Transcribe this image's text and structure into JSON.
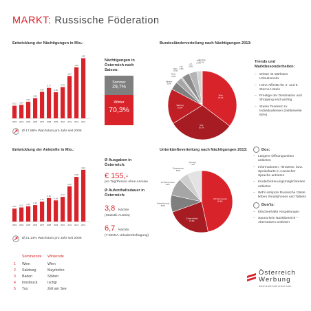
{
  "header": {
    "prefix": "MARKT:",
    "title": "Russische Föderation"
  },
  "chart_data": [
    {
      "type": "bar",
      "title": "Entwicklung der Nächtigungen in Mio.:",
      "categories": [
        "2003",
        "2004",
        "2005",
        "2006",
        "2007",
        "2008",
        "2009",
        "2010",
        "2011",
        "2012",
        "2013"
      ],
      "values": [
        0.32,
        0.34,
        0.42,
        0.51,
        0.67,
        0.77,
        0.66,
        0.79,
        1.07,
        1.29,
        1.52
      ],
      "value_labels": [
        "0,32",
        "0,34",
        "0,42",
        "0,51",
        "0,67",
        "0,77",
        "0,66",
        "0,79",
        "1,07",
        "1,29",
        "1,52"
      ],
      "ylim": [
        0,
        1.6
      ],
      "footnote": "Ø 17,68% Wachstum pro Jahr seit 2005"
    },
    {
      "type": "pie",
      "title": "Bundesländerverteilung nach Nächtigungen 2013:",
      "slices": [
        {
          "label": "Wien",
          "pct": "35,2%",
          "value": 35.2
        },
        {
          "label": "Tirol",
          "pct": "30,7%",
          "value": 30.7
        },
        {
          "label": "Salzburg",
          "pct": "16,6%",
          "value": 16.6
        },
        {
          "label": "Kärnten",
          "pct": "3,8%",
          "value": 3.8
        },
        {
          "label": "Stmk.",
          "pct": "2,9%",
          "value": 2.9
        },
        {
          "label": "Bgld.",
          "pct": "0,7%",
          "value": 0.7
        },
        {
          "label": "NÖ",
          "pct": "3,6%",
          "value": 3.6
        },
        {
          "label": "OÖ",
          "pct": "3,6%",
          "value": 3.6
        },
        {
          "label": "Vbg.",
          "pct": "2,4%",
          "value": 2.4
        },
        {
          "label": "Sonstige",
          "pct": "0,2%",
          "value": 0.2
        }
      ]
    },
    {
      "type": "bar",
      "title": "Entwicklung der Ankünfte in Mio.:",
      "categories": [
        "2003",
        "2004",
        "2005",
        "2006",
        "2007",
        "2008",
        "2009",
        "2010",
        "2011",
        "2012",
        "2013"
      ],
      "values": [
        0.11,
        0.12,
        0.13,
        0.14,
        0.17,
        0.2,
        0.18,
        0.21,
        0.3,
        0.38,
        0.44
      ],
      "value_labels": [
        "0,11",
        "0,12",
        "0,13",
        "0,14",
        "0,17",
        "0,20",
        "0,18",
        "0,21",
        "0,30",
        "0,38",
        "0,44"
      ],
      "ylim": [
        0,
        0.48
      ],
      "footnote": "Ø 21,14% Wachstum pro Jahr seit 2005"
    },
    {
      "type": "pie",
      "title": "Unterkünfteverteilung nach Nächtigungen 2013:",
      "slices": [
        {
          "label": "4/5 Sterne-Hotel",
          "pct": "46,6%",
          "value": 46.6
        },
        {
          "label": "3 Sterne-Hotel",
          "pct": "22,9%",
          "value": 22.9
        },
        {
          "label": "Ferienwohnung",
          "pct": "8,9%",
          "value": 8.9
        },
        {
          "label": "1/2 Sterne-Hotel",
          "pct": "9,2%",
          "value": 9.2
        },
        {
          "label": "Privatquartier",
          "pct": "5,0%",
          "value": 5.0
        },
        {
          "label": "Sonstige",
          "pct": "7,4%",
          "value": 7.4
        }
      ]
    }
  ],
  "season": {
    "title": "Nächtigungen in Österreich nach Saison:",
    "sommer_label": "Sommer",
    "sommer_pct": "29,7%",
    "winter_label": "Winter",
    "winter_pct": "70,3%"
  },
  "trends": {
    "title": "Trends und Marktbesonderheiten:",
    "items": [
      "Winter ist stärkstes Urlaubsmotiv",
      "Hohe Affinität für 4- und 5-Sterne-Hotels",
      "Prestige der Destination und Shopping sind wichtig",
      "Starke Tendenz zu Individualreisen (mittlerweile 60%)"
    ]
  },
  "spending": {
    "ausgaben_title": "Ø Ausgaben in Österreich:",
    "ausgaben_value": "€ 155,-",
    "ausgaben_note": "pro Tag/Person ohne Anreise",
    "aufenthalt_title": "Ø Aufenthaltsdauer in Österreich:",
    "a1_value": "3,8",
    "a1_unit": "Nächte",
    "a1_note": "(Statistik Austria)",
    "a2_value": "6,7",
    "a2_unit": "Nächte",
    "a2_note": "(T-MONA Urlauberbefragung)"
  },
  "ranking": {
    "col_sommer": "Sommerorte",
    "col_winter": "Winterorte",
    "rows": [
      {
        "n": "1",
        "s": "Wien",
        "w": "Wien"
      },
      {
        "n": "2",
        "s": "Salzburg",
        "w": "Mayrhofen"
      },
      {
        "n": "3",
        "s": "Baden",
        "w": "Sölden"
      },
      {
        "n": "4",
        "s": "Innsbruck",
        "w": "Ischgl"
      },
      {
        "n": "5",
        "s": "Tux",
        "w": "Zell am See"
      }
    ]
  },
  "dos": {
    "title": "Dos:",
    "items": [
      "Längere Öffnungszeiten anbieten",
      "Informationen, Hinweise, bzw. Speisekarte in russischer Sprache anbieten",
      "Kinderbetreuungsmöglichkeiten anbieten",
      "WiFi Hotspots Russische Gäste lieben Smartphones und Tablets"
    ]
  },
  "donts": {
    "title": "Don'ts:",
    "items": [
      "Klischeehafte Anspielungen",
      "Sauna kein Nacktbereich – Alternativen anbieten"
    ]
  },
  "logo": {
    "line1": "Österreich",
    "line2": "Werbung",
    "url": "www.austriatourism.com"
  },
  "colors": {
    "accent": "#d9232b",
    "dark_red": "#a61c22",
    "grey": "#7f7f7f",
    "light_grey": "#cfcfcf"
  }
}
